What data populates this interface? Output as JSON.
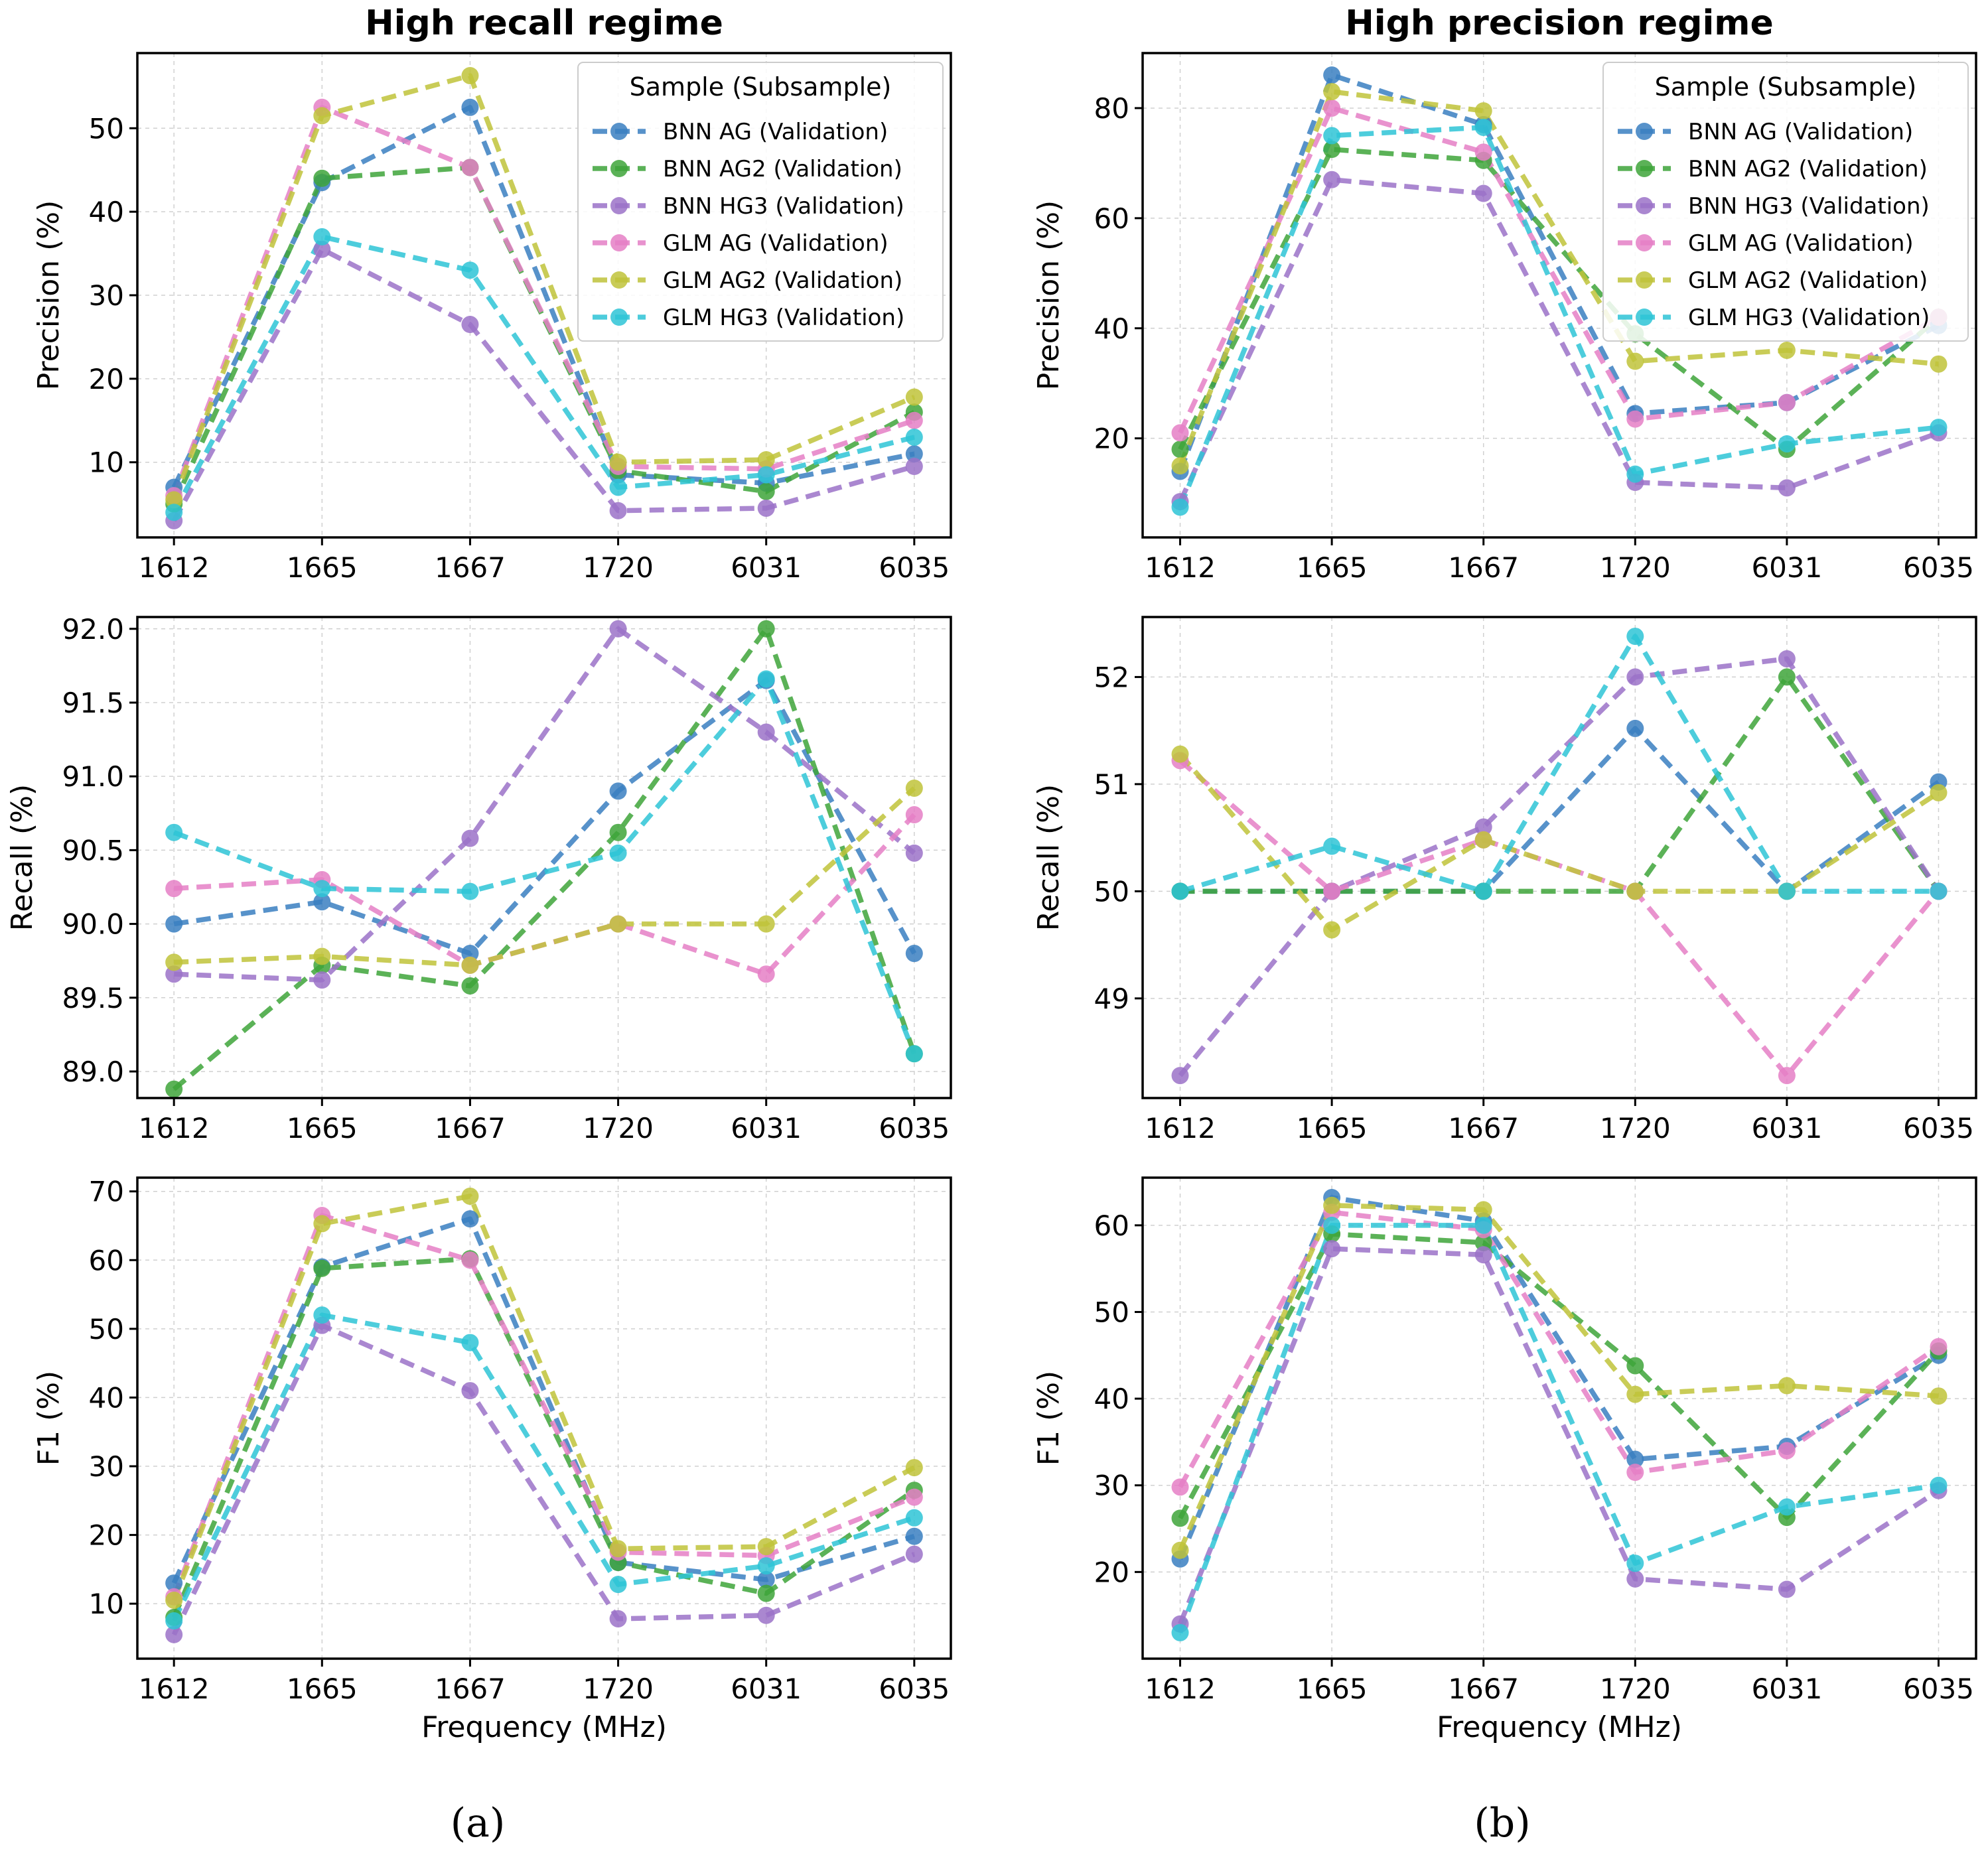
{
  "figure": {
    "captions": [
      "(a)",
      "(b)"
    ],
    "legend_title": "Sample (Subsample)",
    "series_names": [
      "BNN AG (Validation)",
      "BNN AG2 (Validation)",
      "BNN HG3 (Validation)",
      "GLM AG (Validation)",
      "GLM AG2 (Validation)",
      "GLM HG3 (Validation)"
    ],
    "colors": [
      "#3a7fc1",
      "#3ea43a",
      "#9b72c8",
      "#e57fc6",
      "#bfc33a",
      "#2ec4d6"
    ]
  },
  "chart_data": [
    {
      "id": "recall-precision",
      "type": "line",
      "title": "High recall regime",
      "xlabel": "",
      "ylabel": "Precision (%)",
      "categories": [
        "1612",
        "1665",
        "1667",
        "1720",
        "6031",
        "6035"
      ],
      "ylim": [
        1,
        59
      ],
      "yticks": [
        10,
        20,
        30,
        40,
        50
      ],
      "legend": "top-right",
      "series": [
        {
          "name": "BNN AG (Validation)",
          "values": [
            7.0,
            43.5,
            52.5,
            8.5,
            7.5,
            11.0
          ]
        },
        {
          "name": "BNN AG2 (Validation)",
          "values": [
            5.0,
            44.0,
            45.3,
            9.0,
            6.5,
            16.0
          ]
        },
        {
          "name": "BNN HG3 (Validation)",
          "values": [
            3.0,
            35.5,
            26.5,
            4.2,
            4.5,
            9.5
          ]
        },
        {
          "name": "GLM AG (Validation)",
          "values": [
            6.0,
            52.5,
            45.3,
            9.5,
            9.2,
            15.0
          ]
        },
        {
          "name": "GLM AG2 (Validation)",
          "values": [
            5.5,
            51.5,
            56.3,
            10.0,
            10.3,
            17.8
          ]
        },
        {
          "name": "GLM HG3 (Validation)",
          "values": [
            4.0,
            37.0,
            33.0,
            7.0,
            8.5,
            13.0
          ]
        }
      ]
    },
    {
      "id": "precision-precision",
      "type": "line",
      "title": "High precision regime",
      "xlabel": "",
      "ylabel": "Precision (%)",
      "categories": [
        "1612",
        "1665",
        "1667",
        "1720",
        "6031",
        "6035"
      ],
      "ylim": [
        2,
        90
      ],
      "yticks": [
        20,
        40,
        60,
        80
      ],
      "legend": "top-right",
      "series": [
        {
          "name": "BNN AG (Validation)",
          "values": [
            14.0,
            86.0,
            77.0,
            24.5,
            26.5,
            40.5
          ]
        },
        {
          "name": "BNN AG2 (Validation)",
          "values": [
            18.0,
            72.5,
            70.5,
            39.0,
            18.0,
            42.0
          ]
        },
        {
          "name": "BNN HG3 (Validation)",
          "values": [
            8.5,
            67.0,
            64.5,
            12.0,
            11.0,
            21.0
          ]
        },
        {
          "name": "GLM AG (Validation)",
          "values": [
            21.0,
            80.0,
            72.0,
            23.5,
            26.5,
            42.0
          ]
        },
        {
          "name": "GLM AG2 (Validation)",
          "values": [
            15.0,
            83.0,
            79.5,
            34.0,
            36.0,
            33.5
          ]
        },
        {
          "name": "GLM HG3 (Validation)",
          "values": [
            7.5,
            75.0,
            76.5,
            13.5,
            19.0,
            22.0
          ]
        }
      ]
    },
    {
      "id": "recall-recall",
      "type": "line",
      "title": "",
      "xlabel": "",
      "ylabel": "Recall (%)",
      "categories": [
        "1612",
        "1665",
        "1667",
        "1720",
        "6031",
        "6035"
      ],
      "ylim": [
        88.82,
        92.08
      ],
      "yticks": [
        89.0,
        89.5,
        90.0,
        90.5,
        91.0,
        91.5,
        92.0
      ],
      "ytick_labels": [
        "89.0",
        "89.5",
        "90.0",
        "90.5",
        "91.0",
        "91.5",
        "92.0"
      ],
      "series": [
        {
          "name": "BNN AG (Validation)",
          "values": [
            90.0,
            90.15,
            89.8,
            90.9,
            91.65,
            89.8
          ]
        },
        {
          "name": "BNN AG2 (Validation)",
          "values": [
            88.88,
            89.72,
            89.58,
            90.62,
            92.0,
            89.12
          ]
        },
        {
          "name": "BNN HG3 (Validation)",
          "values": [
            89.66,
            89.62,
            90.58,
            92.0,
            91.3,
            90.48
          ]
        },
        {
          "name": "GLM AG (Validation)",
          "values": [
            90.24,
            90.3,
            89.72,
            90.0,
            89.66,
            90.74
          ]
        },
        {
          "name": "GLM AG2 (Validation)",
          "values": [
            89.74,
            89.78,
            89.72,
            90.0,
            90.0,
            90.92
          ]
        },
        {
          "name": "GLM HG3 (Validation)",
          "values": [
            90.62,
            90.24,
            90.22,
            90.48,
            91.66,
            89.12
          ]
        }
      ]
    },
    {
      "id": "precision-recall",
      "type": "line",
      "title": "",
      "xlabel": "",
      "ylabel": "Recall (%)",
      "categories": [
        "1612",
        "1665",
        "1667",
        "1720",
        "6031",
        "6035"
      ],
      "ylim": [
        48.07,
        52.56
      ],
      "yticks": [
        49,
        50,
        51,
        52
      ],
      "series": [
        {
          "name": "BNN AG (Validation)",
          "values": [
            50.0,
            50.0,
            50.0,
            51.52,
            50.0,
            51.02
          ]
        },
        {
          "name": "BNN AG2 (Validation)",
          "values": [
            50.0,
            50.0,
            50.0,
            50.0,
            52.0,
            50.0
          ]
        },
        {
          "name": "BNN HG3 (Validation)",
          "values": [
            48.28,
            50.0,
            50.6,
            52.0,
            52.17,
            50.0
          ]
        },
        {
          "name": "GLM AG (Validation)",
          "values": [
            51.22,
            50.0,
            50.48,
            50.0,
            48.28,
            50.0
          ]
        },
        {
          "name": "GLM AG2 (Validation)",
          "values": [
            51.28,
            49.64,
            50.48,
            50.0,
            50.0,
            50.92
          ]
        },
        {
          "name": "GLM HG3 (Validation)",
          "values": [
            50.0,
            50.42,
            50.0,
            52.38,
            50.0,
            50.0
          ]
        }
      ]
    },
    {
      "id": "recall-f1",
      "type": "line",
      "title": "",
      "xlabel": "Frequency (MHz)",
      "ylabel": "F1 (%)",
      "categories": [
        "1612",
        "1665",
        "1667",
        "1720",
        "6031",
        "6035"
      ],
      "ylim": [
        2,
        72
      ],
      "yticks": [
        10,
        20,
        30,
        40,
        50,
        60,
        70
      ],
      "series": [
        {
          "name": "BNN AG (Validation)",
          "values": [
            13.0,
            59.0,
            66.0,
            16.0,
            13.5,
            19.8
          ]
        },
        {
          "name": "BNN AG2 (Validation)",
          "values": [
            8.0,
            58.8,
            60.2,
            16.0,
            11.5,
            26.5
          ]
        },
        {
          "name": "BNN HG3 (Validation)",
          "values": [
            5.5,
            50.5,
            41.0,
            7.8,
            8.3,
            17.2
          ]
        },
        {
          "name": "GLM AG (Validation)",
          "values": [
            11.0,
            66.5,
            60.0,
            17.5,
            17.0,
            25.5
          ]
        },
        {
          "name": "GLM AG2 (Validation)",
          "values": [
            10.5,
            65.3,
            69.3,
            18.0,
            18.3,
            29.8
          ]
        },
        {
          "name": "GLM HG3 (Validation)",
          "values": [
            7.5,
            52.0,
            48.0,
            12.8,
            15.5,
            22.5
          ]
        }
      ]
    },
    {
      "id": "precision-f1",
      "type": "line",
      "title": "",
      "xlabel": "Frequency (MHz)",
      "ylabel": "F1 (%)",
      "categories": [
        "1612",
        "1665",
        "1667",
        "1720",
        "6031",
        "6035"
      ],
      "ylim": [
        10,
        65.5
      ],
      "yticks": [
        20,
        30,
        40,
        50,
        60
      ],
      "series": [
        {
          "name": "BNN AG (Validation)",
          "values": [
            21.5,
            63.2,
            60.5,
            33.0,
            34.5,
            45.0
          ]
        },
        {
          "name": "BNN AG2 (Validation)",
          "values": [
            26.2,
            59.0,
            58.0,
            43.8,
            26.3,
            45.5
          ]
        },
        {
          "name": "BNN HG3 (Validation)",
          "values": [
            14.0,
            57.3,
            56.6,
            19.2,
            18.0,
            29.4
          ]
        },
        {
          "name": "GLM AG (Validation)",
          "values": [
            29.8,
            61.5,
            59.5,
            31.5,
            34.0,
            46.0
          ]
        },
        {
          "name": "GLM AG2 (Validation)",
          "values": [
            22.5,
            62.3,
            61.8,
            40.5,
            41.5,
            40.3
          ]
        },
        {
          "name": "GLM HG3 (Validation)",
          "values": [
            13.0,
            60.0,
            60.0,
            21.0,
            27.5,
            30.0
          ]
        }
      ]
    }
  ]
}
